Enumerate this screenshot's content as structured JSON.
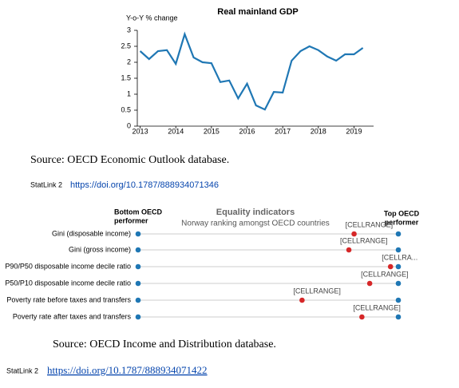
{
  "chart_data": [
    {
      "type": "line",
      "title": "Real mainland GDP",
      "ylabel": "Y-o-Y % change",
      "x": [
        2013,
        2013.25,
        2013.5,
        2013.75,
        2014,
        2014.25,
        2014.5,
        2014.75,
        2015,
        2015.25,
        2015.5,
        2015.75,
        2016,
        2016.25,
        2016.5,
        2016.75,
        2017,
        2017.25,
        2017.5,
        2017.75,
        2018,
        2018.25,
        2018.5,
        2018.75,
        2019,
        2019.25
      ],
      "values": [
        2.35,
        2.1,
        2.35,
        2.38,
        1.95,
        2.88,
        2.15,
        2.0,
        1.97,
        1.38,
        1.43,
        0.87,
        1.33,
        0.65,
        0.52,
        1.07,
        1.05,
        2.05,
        2.35,
        2.5,
        2.38,
        2.18,
        2.05,
        2.25,
        2.25,
        2.45
      ],
      "color": "#1f77b4",
      "xlim": [
        2012.92,
        2019.55
      ],
      "xticks": [
        2013,
        2014,
        2015,
        2016,
        2017,
        2018,
        2019
      ],
      "ylim": [
        0,
        3
      ],
      "yticks": [
        0,
        0.5,
        1,
        1.5,
        2,
        2.5,
        3
      ],
      "grid": false
    },
    {
      "type": "dot",
      "title": "Equality indicators",
      "subtitle": "Norway ranking amongst OECD countries",
      "left_label": [
        "Bottom OECD",
        "performer"
      ],
      "right_label": [
        "Top OECD",
        "performer"
      ],
      "categories": [
        "Gini (disposable income)",
        "Gini (gross income)",
        "P90/P50 disposable income decile ratio",
        "P50/P10 disposable income decile ratio",
        "Poverty rate before taxes and transfers",
        "Poverty rate after taxes and transfers"
      ],
      "xlim": [
        0,
        100
      ],
      "series": [
        {
          "color": "#1f77b4",
          "values": [
            0,
            0,
            0,
            0,
            0,
            0
          ]
        },
        {
          "color": "#1f77b4",
          "values": [
            100,
            100,
            100,
            100,
            100,
            100
          ]
        },
        {
          "color": "#d62728",
          "values": [
            83,
            81,
            97,
            89,
            63,
            86
          ],
          "value_labels": [
            "[CELLRANGE]",
            "[CELLRANGE]",
            "[CELLRA...",
            "[CELLRANGE]",
            "[CELLRANGE]",
            "[CELLRANGE]"
          ]
        }
      ]
    }
  ],
  "sources": [
    "Source: OECD Economic Outlook database.",
    "Source: OECD Income and Distribution database."
  ],
  "statlinks": [
    {
      "prefix": "StatLink 2",
      "url": "https://doi.org/10.1787/888934071346"
    },
    {
      "prefix": "StatLink 2",
      "url": "https://doi.org/10.1787/888934071422"
    }
  ]
}
